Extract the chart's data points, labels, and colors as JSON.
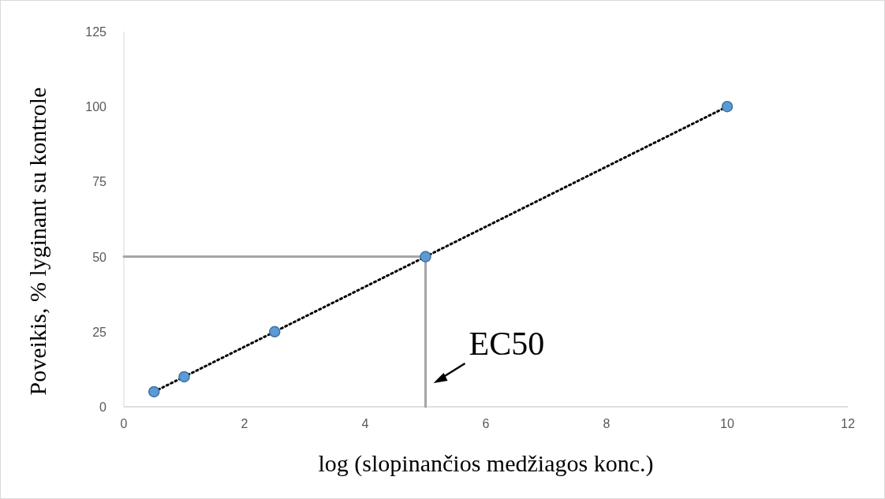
{
  "chart_data": {
    "type": "scatter",
    "xlabel": "log (slopinančios medžiagos konc.)",
    "ylabel": "Poveikis, % lyginant su kontrole",
    "xlim": [
      0,
      12
    ],
    "xticks": [
      0,
      2,
      4,
      6,
      8,
      10,
      12
    ],
    "ylim": [
      0,
      125
    ],
    "yticks": [
      0,
      25,
      50,
      75,
      100,
      125
    ],
    "grid": false,
    "series": [
      {
        "type": "line",
        "color": "#a5a5a5",
        "x": [
          0,
          5,
          5
        ],
        "values": [
          50,
          50,
          0
        ],
        "marker": "none",
        "line_style": "solid"
      },
      {
        "type": "line",
        "color": "#000000",
        "x": [
          0.5,
          10
        ],
        "values": [
          5,
          100
        ],
        "marker": "none",
        "line_style": "dotted"
      },
      {
        "color": "#5b9bd5",
        "x": [
          0.5,
          1,
          2.5,
          5,
          10
        ],
        "values": [
          5,
          10,
          25,
          50,
          100
        ],
        "marker": "circle"
      }
    ],
    "annotations": [
      {
        "text": "EC50",
        "x": 5,
        "y": 0
      }
    ]
  }
}
